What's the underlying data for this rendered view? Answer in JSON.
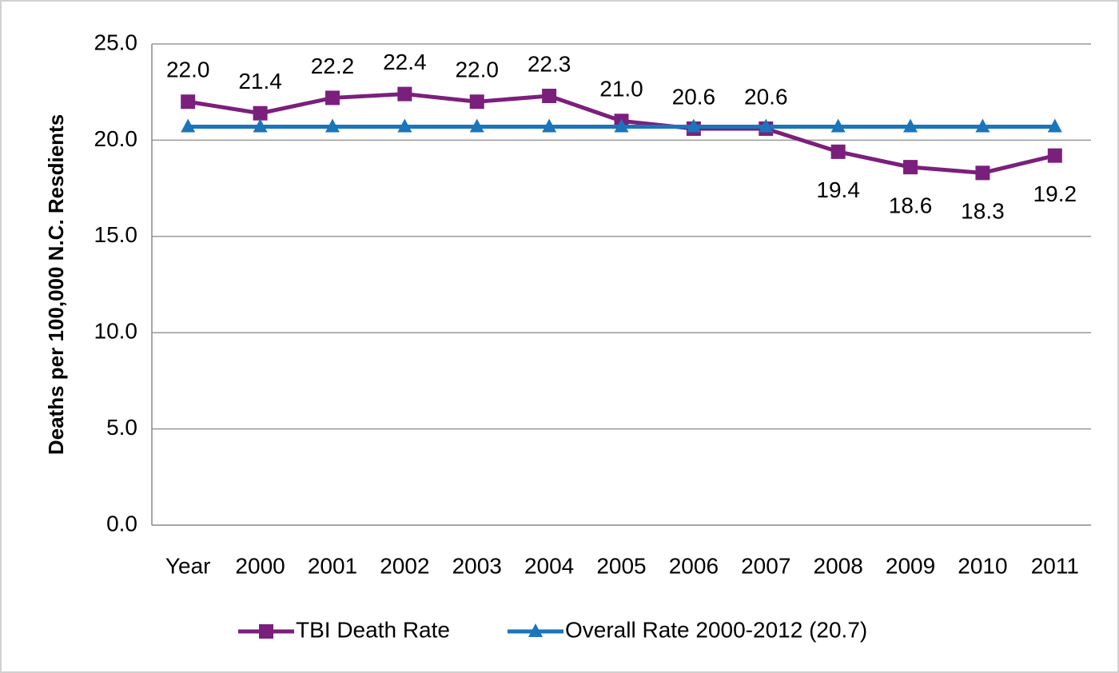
{
  "chart_data": {
    "type": "line",
    "y_label": "Deaths per 100,000 N.C. Resdients",
    "categories": [
      "Year",
      "2000",
      "2001",
      "2002",
      "2003",
      "2004",
      "2005",
      "2006",
      "2007",
      "2008",
      "2009",
      "2010",
      "2011"
    ],
    "series": [
      {
        "name": "TBI Death Rate",
        "color": "#7b1f7c",
        "marker": "square",
        "values": [
          22.0,
          21.4,
          22.2,
          22.4,
          22.0,
          22.3,
          21.0,
          20.6,
          20.6,
          19.4,
          18.6,
          18.3,
          19.2
        ],
        "value_labels": [
          "22.0",
          "21.4",
          "22.2",
          "22.4",
          "22.0",
          "22.3",
          "21.0",
          "20.6",
          "20.6",
          "19.4",
          "18.6",
          "18.3",
          "19.2"
        ]
      },
      {
        "name": "Overall Rate 2000-2012 (20.7)",
        "color": "#1a75bb",
        "marker": "triangle",
        "values": [
          20.7,
          20.7,
          20.7,
          20.7,
          20.7,
          20.7,
          20.7,
          20.7,
          20.7,
          20.7,
          20.7,
          20.7,
          20.7
        ]
      }
    ],
    "ylim": [
      0,
      25
    ],
    "yticks": [
      {
        "value": 0,
        "label": "0.0"
      },
      {
        "value": 5,
        "label": "5.0"
      },
      {
        "value": 10,
        "label": "10.0"
      },
      {
        "value": 15,
        "label": "15.0"
      },
      {
        "value": 20,
        "label": "20.0"
      },
      {
        "value": 25,
        "label": "25.0"
      }
    ],
    "grid": true,
    "legend": "bottom"
  }
}
